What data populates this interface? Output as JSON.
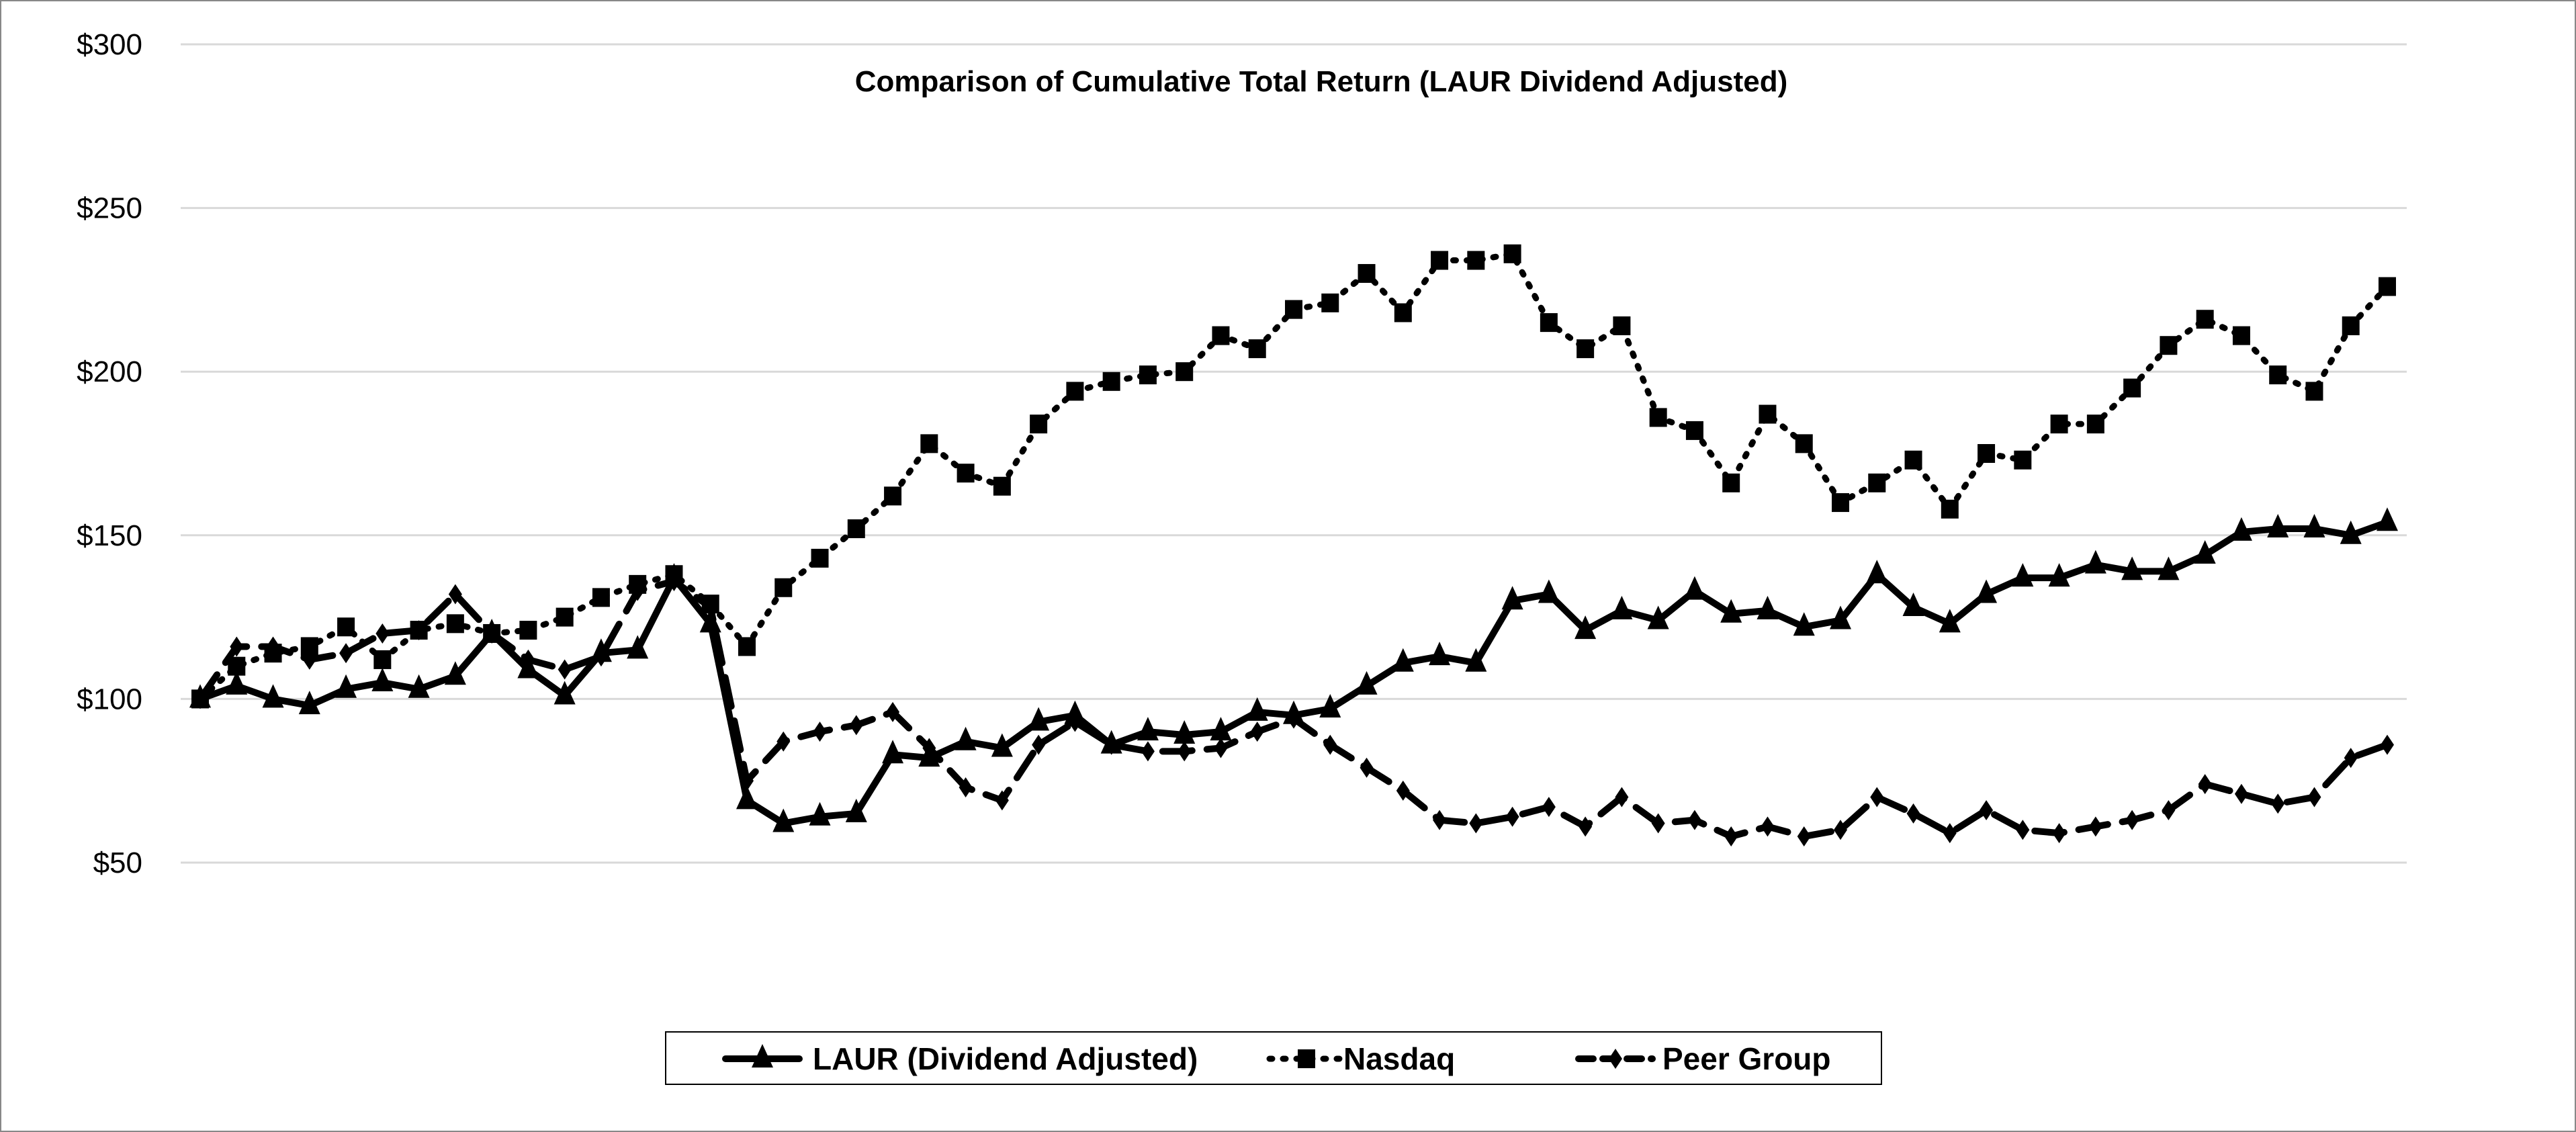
{
  "chart_data": {
    "type": "line",
    "title": "Comparison of Cumulative Total Return (LAUR Dividend Adjusted)",
    "xlabel": "",
    "ylabel": "",
    "ylim": [
      50,
      300
    ],
    "y_ticks": [
      "$50",
      "$100",
      "$150",
      "$200",
      "$250",
      "$300"
    ],
    "y_tick_values": [
      50,
      100,
      150,
      200,
      250,
      300
    ],
    "grid": "horizontal",
    "legend_position": "bottom",
    "series": [
      {
        "name": "LAUR (Dividend Adjusted)",
        "style": "solid",
        "marker": "triangle",
        "color": "#000000",
        "values": [
          100,
          104,
          100,
          98,
          103,
          105,
          103,
          107,
          120,
          109,
          101,
          114,
          115,
          137,
          123,
          69,
          62,
          64,
          65,
          83,
          82,
          87,
          85,
          93,
          95,
          86,
          90,
          89,
          90,
          96,
          95,
          97,
          104,
          111,
          113,
          111,
          130,
          132,
          121,
          127,
          124,
          133,
          126,
          127,
          122,
          124,
          138,
          128,
          123,
          132,
          137,
          137,
          141,
          139,
          139,
          144,
          151,
          152,
          152,
          150,
          154
        ]
      },
      {
        "name": "Nasdaq",
        "style": "dotted",
        "marker": "square",
        "color": "#000000",
        "values": [
          100,
          110,
          114,
          116,
          122,
          112,
          121,
          123,
          120,
          121,
          125,
          131,
          135,
          138,
          129,
          116,
          134,
          143,
          152,
          162,
          178,
          169,
          165,
          184,
          194,
          197,
          199,
          200,
          211,
          207,
          219,
          221,
          230,
          218,
          234,
          234,
          236,
          215,
          207,
          214,
          186,
          182,
          166,
          187,
          178,
          160,
          166,
          173,
          158,
          175,
          173,
          184,
          184,
          195,
          208,
          216,
          211,
          199,
          194,
          214,
          226
        ]
      },
      {
        "name": "Peer Group",
        "style": "dashed",
        "marker": "diamond",
        "color": "#000000",
        "values": [
          100,
          116,
          116,
          112,
          114,
          120,
          121,
          132,
          120,
          112,
          109,
          113,
          133,
          136,
          128,
          75,
          87,
          90,
          92,
          96,
          85,
          73,
          69,
          86,
          93,
          86,
          84,
          84,
          85,
          90,
          94,
          86,
          79,
          72,
          63,
          62,
          64,
          67,
          61,
          70,
          62,
          63,
          58,
          61,
          58,
          60,
          70,
          65,
          59,
          66,
          60,
          59,
          61,
          63,
          66,
          74,
          71,
          68,
          70,
          82,
          86
        ]
      }
    ]
  }
}
